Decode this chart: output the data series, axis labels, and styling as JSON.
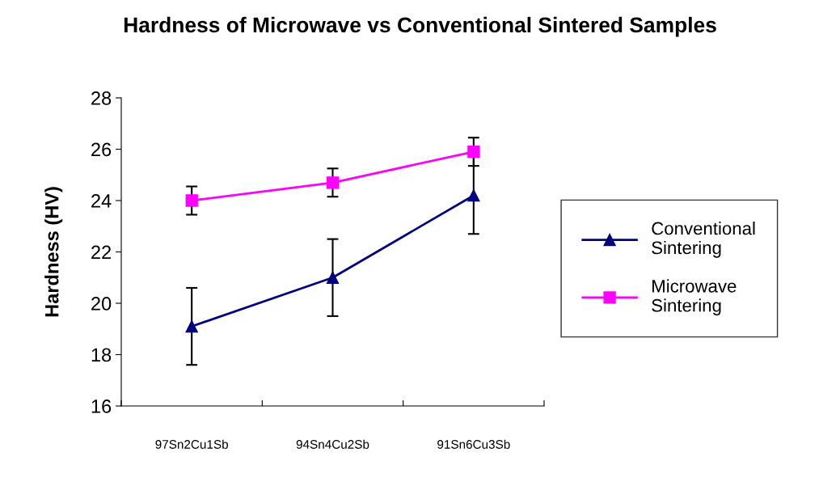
{
  "chart_data": {
    "type": "line",
    "title": "Hardness of Microwave vs Conventional Sintered Samples",
    "ylabel": "Hardness (HV)",
    "categories": [
      "97Sn2Cu1Sb",
      "94Sn4Cu2Sb",
      "91Sn6Cu3Sb"
    ],
    "series": [
      {
        "name": "Conventional Sintering",
        "color": "#000080",
        "values": [
          19.1,
          21.0,
          24.2
        ],
        "errors": [
          1.5,
          1.5,
          1.5
        ],
        "marker": "triangle"
      },
      {
        "name": "Microwave Sintering",
        "color": "#ff00ff",
        "values": [
          24.0,
          24.7,
          25.9
        ],
        "errors": [
          0.55,
          0.55,
          0.55
        ],
        "marker": "square"
      }
    ],
    "ylim": [
      16,
      28
    ],
    "yticks": [
      16,
      18,
      20,
      22,
      24,
      26,
      28
    ],
    "grid": false,
    "legend": "right",
    "line_style": "solid"
  }
}
